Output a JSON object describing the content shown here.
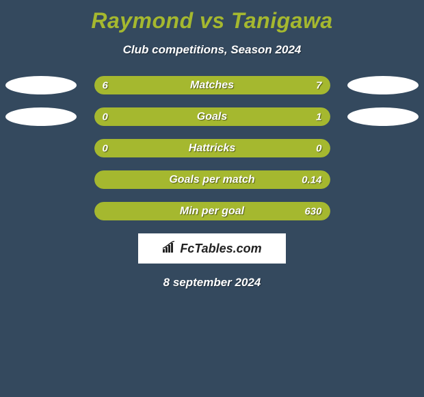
{
  "title": "Raymond vs Tanigawa",
  "subtitle": "Club competitions, Season 2024",
  "date": "8 september 2024",
  "logo_text": "FcTables.com",
  "colors": {
    "background": "#34495e",
    "accent": "#a5b82f",
    "bar_bg": "#3f5871",
    "text": "#ffffff",
    "ellipse": "#ffffff"
  },
  "rows": [
    {
      "label": "Matches",
      "left_val": "6",
      "right_val": "7",
      "left_pct": 46,
      "right_pct": 54,
      "show_left_ellipse": true,
      "show_right_ellipse": true
    },
    {
      "label": "Goals",
      "left_val": "0",
      "right_val": "1",
      "left_pct": 18,
      "right_pct": 82,
      "show_left_ellipse": true,
      "show_right_ellipse": true
    },
    {
      "label": "Hattricks",
      "left_val": "0",
      "right_val": "0",
      "left_pct": 100,
      "right_pct": 0,
      "show_left_ellipse": false,
      "show_right_ellipse": false
    },
    {
      "label": "Goals per match",
      "left_val": "",
      "right_val": "0.14",
      "left_pct": 0,
      "right_pct": 100,
      "show_left_ellipse": false,
      "show_right_ellipse": false
    },
    {
      "label": "Min per goal",
      "left_val": "",
      "right_val": "630",
      "left_pct": 0,
      "right_pct": 100,
      "show_left_ellipse": false,
      "show_right_ellipse": false
    }
  ]
}
